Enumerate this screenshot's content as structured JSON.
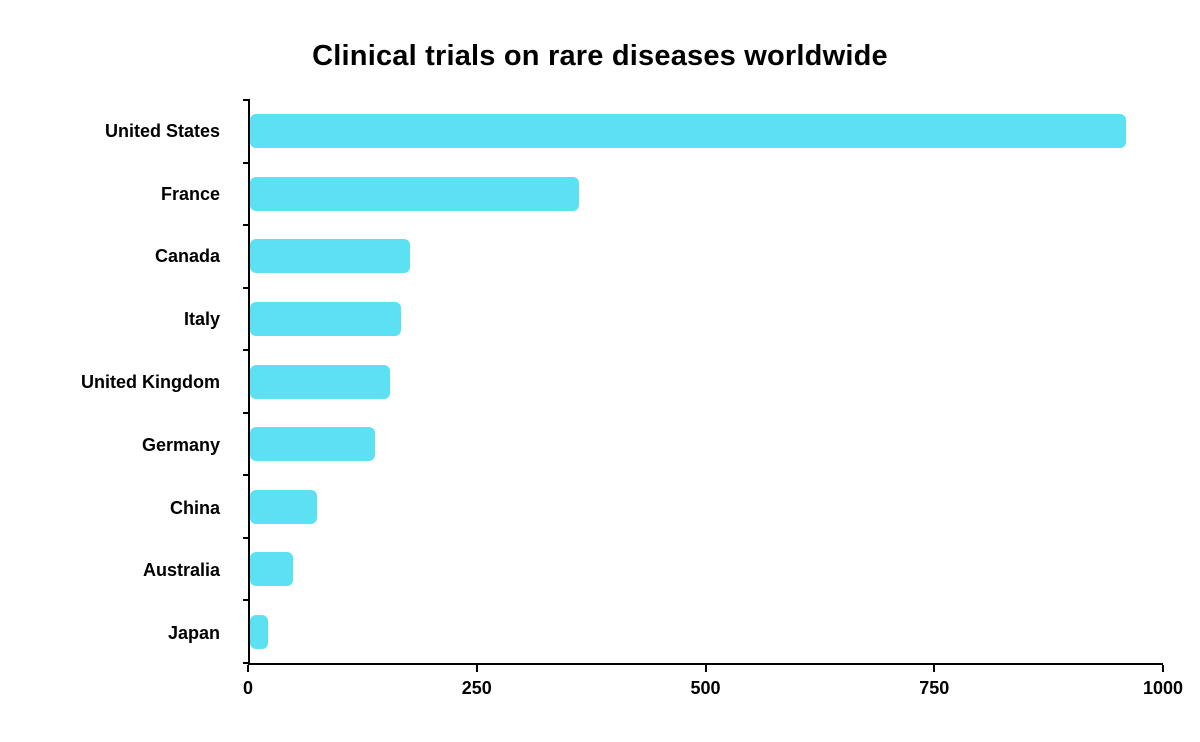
{
  "title": "Clinical trials on rare diseases worldwide",
  "colors": {
    "bar": "#5CE1F2",
    "axis": "#000000",
    "text": "#000000",
    "background": "#ffffff"
  },
  "chart_data": {
    "type": "bar",
    "orientation": "horizontal",
    "title": "Clinical trials on rare diseases worldwide",
    "categories": [
      "United States",
      "France",
      "Canada",
      "Italy",
      "United Kingdom",
      "Germany",
      "China",
      "Australia",
      "Japan"
    ],
    "values": [
      960,
      360,
      175,
      165,
      153,
      137,
      73,
      47,
      20
    ],
    "xlabel": "",
    "ylabel": "",
    "xlim": [
      0,
      1000
    ],
    "xticks": [
      0,
      250,
      500,
      750,
      1000
    ],
    "grid": false,
    "legend": false
  }
}
